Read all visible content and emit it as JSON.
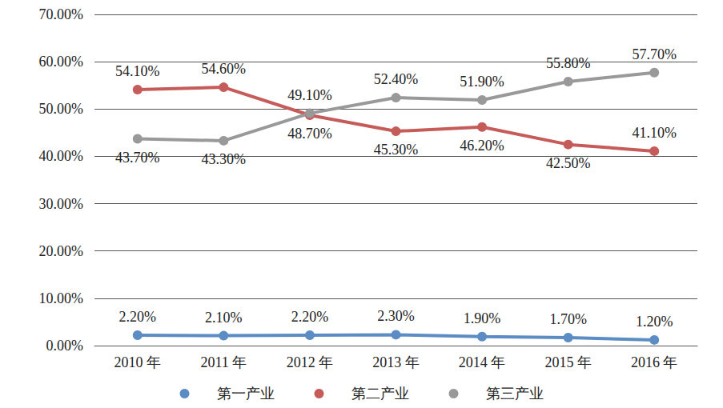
{
  "chart_data": {
    "type": "line",
    "categories": [
      "2010 年",
      "2011 年",
      "2012 年",
      "2013 年",
      "2014 年",
      "2015 年",
      "2016 年"
    ],
    "series": [
      {
        "name": "第一产业",
        "color": "#5b8cc3",
        "marker": "circle",
        "values": [
          2.2,
          2.1,
          2.2,
          2.3,
          1.9,
          1.7,
          1.2
        ],
        "value_labels": [
          "2.20%",
          "2.10%",
          "2.20%",
          "2.30%",
          "1.90%",
          "1.70%",
          "1.20%"
        ]
      },
      {
        "name": "第二产业",
        "color": "#c65c59",
        "marker": "circle",
        "values": [
          54.1,
          54.6,
          48.7,
          45.3,
          46.2,
          42.5,
          41.1
        ],
        "value_labels": [
          "54.10%",
          "54.60%",
          "48.70%",
          "45.30%",
          "46.20%",
          "42.50%",
          "41.10%"
        ]
      },
      {
        "name": "第三产业",
        "color": "#999999",
        "marker": "circle",
        "values": [
          43.7,
          43.3,
          49.1,
          52.4,
          51.9,
          55.8,
          57.7
        ],
        "value_labels": [
          "43.70%",
          "43.30%",
          "49.10%",
          "52.40%",
          "51.90%",
          "55.80%",
          "57.70%"
        ]
      }
    ],
    "ylim": [
      0,
      70
    ],
    "yticks": [
      {
        "value": 0,
        "label": "0.00%"
      },
      {
        "value": 10,
        "label": "10.00%"
      },
      {
        "value": 20,
        "label": "20.00%"
      },
      {
        "value": 30,
        "label": "30.00%"
      },
      {
        "value": 40,
        "label": "40.00%"
      },
      {
        "value": 50,
        "label": "50.00%"
      },
      {
        "value": 60,
        "label": "60.00%"
      },
      {
        "value": 70,
        "label": "70.00%"
      }
    ],
    "grid": true,
    "legend": "bottom",
    "data_labels": true
  }
}
